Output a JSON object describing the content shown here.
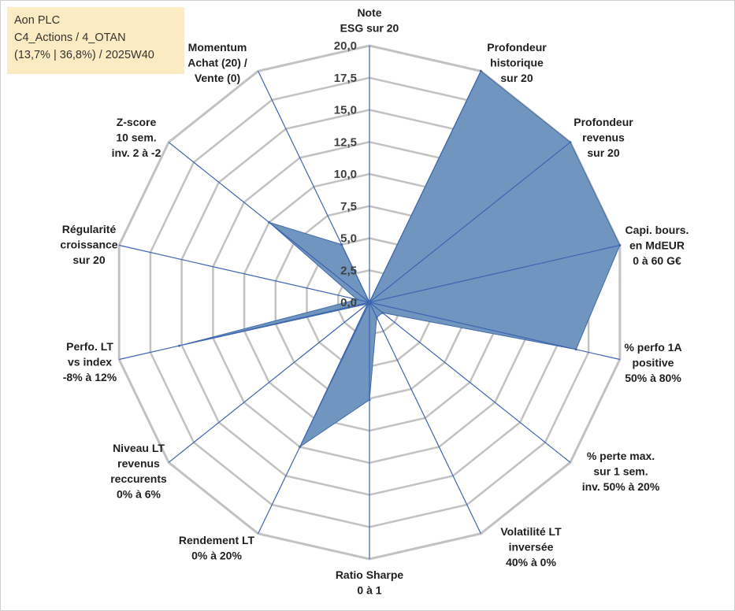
{
  "info": {
    "line1": "Aon PLC",
    "line2": "C4_Actions / 4_OTAN",
    "line3": "(13,7% | 36,8%) / 2025W40"
  },
  "colors": {
    "fill": "#7096c0",
    "stroke": "#3f6aa6",
    "spoke": "#3b64b2",
    "grid": "#c2c2c2",
    "background": "#ffffff",
    "info_box": "#fdebc3"
  },
  "chart_data": {
    "type": "radar",
    "rmin": 0,
    "rmax": 20,
    "tick_step": 2.5,
    "tick_labels": [
      "0,0",
      "2,5",
      "5,0",
      "7,5",
      "10,0",
      "12,5",
      "15,0",
      "17,5",
      "20,0"
    ],
    "categories": [
      {
        "label": [
          "Note",
          "ESG sur 20"
        ],
        "value": 0
      },
      {
        "label": [
          "Profondeur",
          "historique",
          "sur 20"
        ],
        "value": 20
      },
      {
        "label": [
          "Profondeur",
          "revenus",
          "sur 20"
        ],
        "value": 20
      },
      {
        "label": [
          "Capi. bours.",
          "en MdEUR",
          "0 à 60 G€"
        ],
        "value": 20
      },
      {
        "label": [
          "% perfo 1A",
          "positive",
          "50% à 80%"
        ],
        "value": 16.5
      },
      {
        "label": [
          "% perte max.",
          "sur 1 sem.",
          "inv. 50% à 20%"
        ],
        "value": 1.3
      },
      {
        "label": [
          "Volatilité LT",
          "inversée",
          "40% à 0%"
        ],
        "value": 1.3
      },
      {
        "label": [
          "Ratio Sharpe",
          "0 à 1"
        ],
        "value": 7.6
      },
      {
        "label": [
          "Rendement LT",
          "0% à 20%"
        ],
        "value": 12.5
      },
      {
        "label": [
          "Niveau LT",
          "revenus",
          "reccurents",
          "0% à 6%"
        ],
        "value": 0.2
      },
      {
        "label": [
          "Perfo. LT",
          "vs index",
          "-8% à 12%"
        ],
        "value": 15.2
      },
      {
        "label": [
          "Régularité",
          "croissance",
          "sur 20"
        ],
        "value": 1.0
      },
      {
        "label": [
          "Z-score",
          "10 sem.",
          "inv. 2 à -2"
        ],
        "value": 10.0
      },
      {
        "label": [
          "Momentum",
          "Achat (20) /",
          "Vente (0)"
        ],
        "value": 5.0
      }
    ]
  }
}
